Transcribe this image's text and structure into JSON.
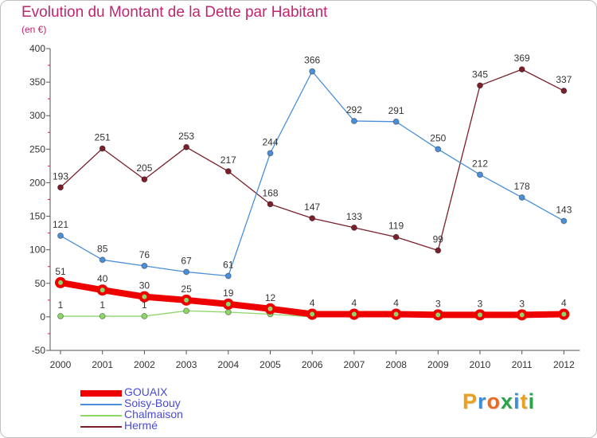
{
  "header": {
    "title": "Evolution du Montant de la Dette par Habitant",
    "subtitle": "(en €)"
  },
  "logo": {
    "text": "Proxiti",
    "colors": [
      "#e8a020",
      "#3a8fd8",
      "#e86a20",
      "#2aa34a",
      "#3a8fd8",
      "#e8a020",
      "#2aa34a"
    ]
  },
  "chart_data": {
    "type": "line",
    "title": "Evolution du Montant de la Dette par Habitant",
    "ylabel": "(en €)",
    "xlabel": "",
    "ylim": [
      -50,
      400
    ],
    "yticks": [
      "-50",
      "0",
      "50",
      "100",
      "150",
      "200",
      "250",
      "300",
      "350",
      "400"
    ],
    "categories": [
      "2000",
      "2001",
      "2002",
      "2003",
      "2004",
      "2005",
      "2006",
      "2007",
      "2008",
      "2009",
      "2010",
      "2011",
      "2012"
    ],
    "grid": false,
    "legend_position": "bottom-left",
    "series": [
      {
        "name": "Hermé",
        "color": "#7a1f2b",
        "values": [
          193,
          251,
          205,
          253,
          217,
          168,
          147,
          133,
          119,
          99,
          345,
          369,
          337
        ],
        "labels": [
          "193",
          "251",
          "205",
          "253",
          "217",
          "168",
          "147",
          "133",
          "119",
          "99",
          "345",
          "369",
          "337"
        ]
      },
      {
        "name": "Soisy-Bouy",
        "color": "#4a8fd8",
        "values": [
          121,
          85,
          76,
          67,
          61,
          244,
          366,
          292,
          291,
          250,
          212,
          178,
          143
        ],
        "labels": [
          "121",
          "85",
          "76",
          "67",
          "61",
          "244",
          "366",
          "292",
          "291",
          "250",
          "212",
          "178",
          "143"
        ]
      },
      {
        "name": "Chalmaison",
        "color": "#8ed66a",
        "values": [
          1,
          1,
          1,
          9,
          7,
          4,
          0,
          0,
          0,
          0,
          0,
          0,
          0
        ],
        "labels": [
          "1",
          "1",
          "1",
          "",
          "",
          "",
          "",
          "",
          "",
          "",
          "",
          "",
          ""
        ]
      },
      {
        "name": "GOUAIX",
        "color": "#ee0000",
        "values": [
          51,
          40,
          30,
          25,
          19,
          12,
          4,
          4,
          4,
          3,
          3,
          3,
          4
        ],
        "labels": [
          "51",
          "40",
          "30",
          "25",
          "19",
          "12",
          "4",
          "4",
          "4",
          "3",
          "3",
          "3",
          "4"
        ]
      }
    ],
    "legend": [
      "GOUAIX",
      "Soisy-Bouy",
      "Chalmaison",
      "Hermé"
    ]
  }
}
